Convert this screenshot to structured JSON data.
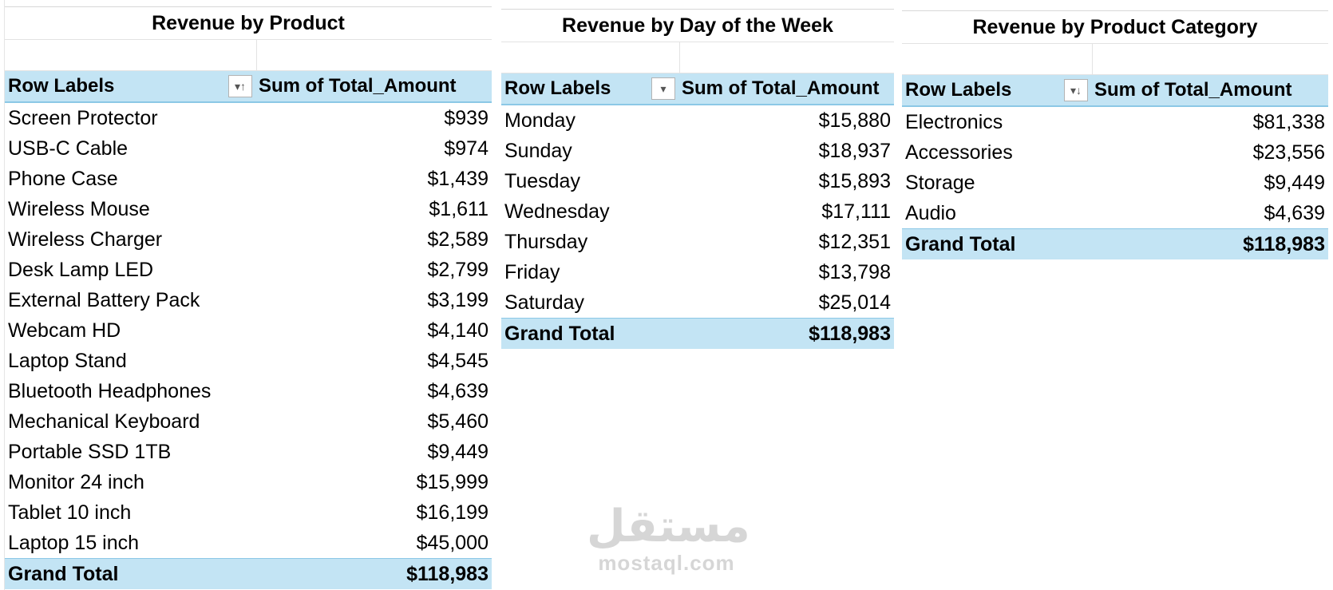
{
  "tables": [
    {
      "title": "Revenue by Product",
      "row_labels_header": "Row Labels",
      "value_header": "Sum of Total_Amount",
      "filter_icon": "sort-ascending-filter-icon",
      "rows": [
        {
          "label": "Screen Protector",
          "value": "$939"
        },
        {
          "label": "USB-C Cable",
          "value": "$974"
        },
        {
          "label": "Phone Case",
          "value": "$1,439"
        },
        {
          "label": "Wireless Mouse",
          "value": "$1,611"
        },
        {
          "label": "Wireless Charger",
          "value": "$2,589"
        },
        {
          "label": "Desk Lamp LED",
          "value": "$2,799"
        },
        {
          "label": "External Battery Pack",
          "value": "$3,199"
        },
        {
          "label": "Webcam HD",
          "value": "$4,140"
        },
        {
          "label": "Laptop Stand",
          "value": "$4,545"
        },
        {
          "label": "Bluetooth Headphones",
          "value": "$4,639"
        },
        {
          "label": "Mechanical Keyboard",
          "value": "$5,460"
        },
        {
          "label": "Portable SSD 1TB",
          "value": "$9,449"
        },
        {
          "label": "Monitor 24 inch",
          "value": "$15,999"
        },
        {
          "label": "Tablet 10 inch",
          "value": "$16,199"
        },
        {
          "label": "Laptop 15 inch",
          "value": "$45,000"
        }
      ],
      "total_label": "Grand Total",
      "total_value": "$118,983"
    },
    {
      "title": "Revenue by Day of the Week",
      "row_labels_header": "Row Labels",
      "value_header": "Sum of Total_Amount",
      "filter_icon": "dropdown-filter-icon",
      "rows": [
        {
          "label": "Monday",
          "value": "$15,880"
        },
        {
          "label": "Sunday",
          "value": "$18,937"
        },
        {
          "label": "Tuesday",
          "value": "$15,893"
        },
        {
          "label": "Wednesday",
          "value": "$17,111"
        },
        {
          "label": "Thursday",
          "value": "$12,351"
        },
        {
          "label": "Friday",
          "value": "$13,798"
        },
        {
          "label": "Saturday",
          "value": "$25,014"
        }
      ],
      "total_label": "Grand Total",
      "total_value": "$118,983"
    },
    {
      "title": "Revenue by Product Category",
      "row_labels_header": "Row Labels",
      "value_header": "Sum of Total_Amount",
      "filter_icon": "sort-descending-filter-icon",
      "rows": [
        {
          "label": "Electronics",
          "value": "$81,338"
        },
        {
          "label": "Accessories",
          "value": "$23,556"
        },
        {
          "label": "Storage",
          "value": "$9,449"
        },
        {
          "label": "Audio",
          "value": "$4,639"
        }
      ],
      "total_label": "Grand Total",
      "total_value": "$118,983"
    }
  ],
  "watermark": {
    "logo_text": "مستقل",
    "url": "mostaql.com"
  }
}
